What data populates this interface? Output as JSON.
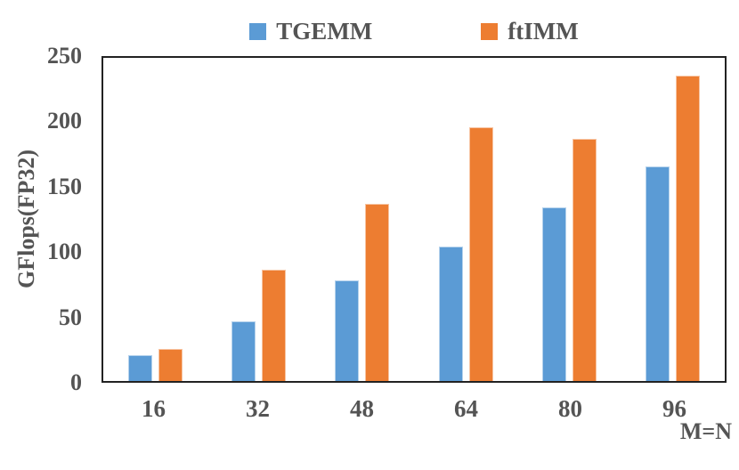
{
  "chart_data": {
    "type": "bar",
    "title": "",
    "categories": [
      "16",
      "32",
      "48",
      "64",
      "80",
      "96"
    ],
    "series": [
      {
        "name": "TGEMM",
        "color": "#5B9BD5",
        "values": [
          20,
          46,
          78,
          104,
          134,
          166
        ]
      },
      {
        "name": "ftIMM",
        "color": "#ED7D31",
        "values": [
          25,
          86,
          137,
          196,
          187,
          236
        ]
      }
    ],
    "xlabel": "M=N",
    "ylabel": "GFlops(FP32)",
    "ylim": [
      0,
      250
    ],
    "yticks": [
      0,
      50,
      100,
      150,
      200,
      250
    ],
    "legend_position": "top",
    "grid": false
  },
  "style": {
    "series_blue": "#5B9BD5",
    "series_orange": "#ED7D31",
    "text_color": "#545454",
    "axis_color": "#222222",
    "background": "#ffffff"
  }
}
